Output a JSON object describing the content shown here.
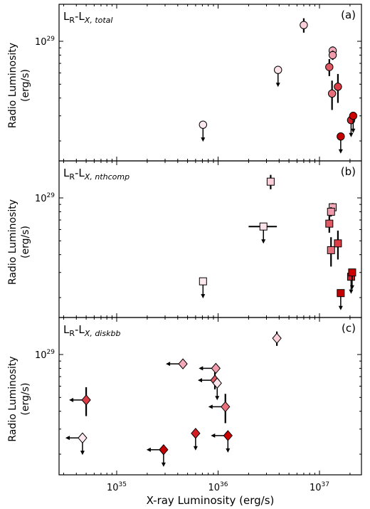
{
  "chart_data": [
    {
      "type": "scatter",
      "panel_label": "(a)",
      "title": "L_R-L_X,total",
      "title_main": "L",
      "title_sub1": "R",
      "title_mid": "-L",
      "title_sub2": "X, total",
      "ylabel": [
        "Radio Luminosity",
        "(erg/s)"
      ],
      "marker": "circle",
      "x_scale": "log",
      "y_scale": "log",
      "ytick_labels": [
        {
          "value": 1e+29,
          "base": "10",
          "exp": "29"
        }
      ],
      "points": [
        {
          "x": 7e+36,
          "y": 1.3e+29,
          "yerr": 1.5e+28,
          "fill": "#fbd0da",
          "upper": false
        },
        {
          "x": 3.9e+36,
          "y": 6.3e+28,
          "yerr": 0,
          "fill": "#fce4ea",
          "upper": true
        },
        {
          "x": 7.1e+35,
          "y": 2.6e+28,
          "yerr": 0,
          "fill": "#fde8ee",
          "upper": true
        },
        {
          "x": 1.35e+37,
          "y": 8.6e+28,
          "yerr": 6e+27,
          "fill": "#f4aab8",
          "upper": false
        },
        {
          "x": 1.35e+37,
          "y": 8e+28,
          "yerr": 6e+27,
          "fill": "#f09aab",
          "upper": false
        },
        {
          "x": 1.25e+37,
          "y": 6.6e+28,
          "yerr": 9e+27,
          "fill": "#e05a66",
          "upper": false
        },
        {
          "x": 1.33e+37,
          "y": 4.3e+28,
          "yerr": 1e+28,
          "fill": "#e8707c",
          "upper": false
        },
        {
          "x": 1.52e+37,
          "y": 4.8e+28,
          "yerr": 1.1e+28,
          "fill": "#dc3c46",
          "upper": false
        },
        {
          "x": 2.05e+37,
          "y": 2.8e+28,
          "yerr": 0,
          "fill": "#d41e26",
          "upper": true
        },
        {
          "x": 2.15e+37,
          "y": 3e+28,
          "yerr": 0,
          "fill": "#cc0000",
          "upper": true
        },
        {
          "x": 1.62e+37,
          "y": 2.15e+28,
          "yerr": 0,
          "fill": "#c40000",
          "upper": true
        }
      ]
    },
    {
      "type": "scatter",
      "panel_label": "(b)",
      "title": "L_R-L_X,nthcomp",
      "title_main": "L",
      "title_sub1": "R",
      "title_mid": "-L",
      "title_sub2": "X, nthcomp",
      "ylabel": [
        "Radio Luminosity",
        "(erg/s)"
      ],
      "marker": "square",
      "x_scale": "log",
      "y_scale": "log",
      "ytick_labels": [
        {
          "value": 1e+29,
          "base": "10",
          "exp": "29"
        }
      ],
      "points": [
        {
          "x": 3.3e+36,
          "y": 1.3e+29,
          "yerr": 1.5e+28,
          "fill": "#fbd0da",
          "upper": false
        },
        {
          "x": 2.8e+36,
          "y": 6.3e+28,
          "yerr": 0,
          "fill": "#fce4ea",
          "upper": true,
          "xerr_lo": 8e+35,
          "xerr_hi": 1e+36
        },
        {
          "x": 7.1e+35,
          "y": 2.6e+28,
          "yerr": 0,
          "fill": "#fde8ee",
          "upper": true
        },
        {
          "x": 1.35e+37,
          "y": 8.6e+28,
          "yerr": 6e+27,
          "fill": "#f4aab8",
          "upper": false
        },
        {
          "x": 1.3e+37,
          "y": 8e+28,
          "yerr": 6e+27,
          "fill": "#f09aab",
          "upper": false
        },
        {
          "x": 1.25e+37,
          "y": 6.6e+28,
          "yerr": 9e+27,
          "fill": "#e05a66",
          "upper": false
        },
        {
          "x": 1.3e+37,
          "y": 4.3e+28,
          "yerr": 1e+28,
          "fill": "#e8707c",
          "upper": false
        },
        {
          "x": 1.52e+37,
          "y": 4.8e+28,
          "yerr": 1.1e+28,
          "fill": "#dc3c46",
          "upper": false
        },
        {
          "x": 2.05e+37,
          "y": 2.8e+28,
          "yerr": 0,
          "fill": "#d41e26",
          "upper": true
        },
        {
          "x": 2.1e+37,
          "y": 3e+28,
          "yerr": 0,
          "fill": "#cc0000",
          "upper": true
        },
        {
          "x": 1.62e+37,
          "y": 2.15e+28,
          "yerr": 0,
          "fill": "#c40000",
          "upper": true
        }
      ]
    },
    {
      "type": "scatter",
      "panel_label": "(c)",
      "title": "L_R-L_X,diskbb",
      "title_main": "L",
      "title_sub1": "R",
      "title_mid": "-L",
      "title_sub2": "X, diskbb",
      "ylabel": [
        "Radio Luminosity",
        "(erg/s)"
      ],
      "xlabel": "X-ray Luminosity (erg/s)",
      "marker": "diamond",
      "x_scale": "log",
      "y_scale": "log",
      "xtick_labels": [
        {
          "value": 1e+35,
          "base": "10",
          "exp": "35"
        },
        {
          "value": 1e+36,
          "base": "10",
          "exp": "36"
        },
        {
          "value": 1e+37,
          "base": "10",
          "exp": "37"
        }
      ],
      "ytick_labels": [
        {
          "value": 1e+29,
          "base": "10",
          "exp": "29"
        }
      ],
      "points": [
        {
          "x": 3.8e+36,
          "y": 1.3e+29,
          "yerr": 1.5e+28,
          "fill": "#fbd0da",
          "upper": false
        },
        {
          "x": 4.5e+35,
          "y": 8.6e+28,
          "yerr": 6e+27,
          "fill": "#f4aab8",
          "upper": false,
          "xlimit": true
        },
        {
          "x": 9.5e+35,
          "y": 8e+28,
          "yerr": 6e+27,
          "fill": "#f09aab",
          "upper": false,
          "xlimit": true
        },
        {
          "x": 9.3e+35,
          "y": 6.6e+28,
          "yerr": 9e+27,
          "fill": "#e05a66",
          "upper": false,
          "xlimit": true
        },
        {
          "x": 9.8e+35,
          "y": 6.3e+28,
          "yerr": 0,
          "fill": "#fce4ea",
          "upper": true
        },
        {
          "x": 1.18e+36,
          "y": 4.3e+28,
          "yerr": 1e+28,
          "fill": "#e8707c",
          "upper": false,
          "xlimit": true
        },
        {
          "x": 5e+34,
          "y": 4.8e+28,
          "yerr": 1.1e+28,
          "fill": "#dc3c46",
          "upper": false,
          "xlimit": true
        },
        {
          "x": 6e+35,
          "y": 2.8e+28,
          "yerr": 0,
          "fill": "#d41e26",
          "upper": true
        },
        {
          "x": 1.25e+36,
          "y": 2.7e+28,
          "yerr": 0,
          "fill": "#cc0000",
          "upper": true,
          "xlimit": true
        },
        {
          "x": 4.6e+34,
          "y": 2.6e+28,
          "yerr": 0,
          "fill": "#fde8ee",
          "upper": true,
          "xlimit": true
        },
        {
          "x": 2.9e+35,
          "y": 2.15e+28,
          "yerr": 0,
          "fill": "#c40000",
          "upper": true,
          "xlimit": true
        }
      ]
    }
  ]
}
